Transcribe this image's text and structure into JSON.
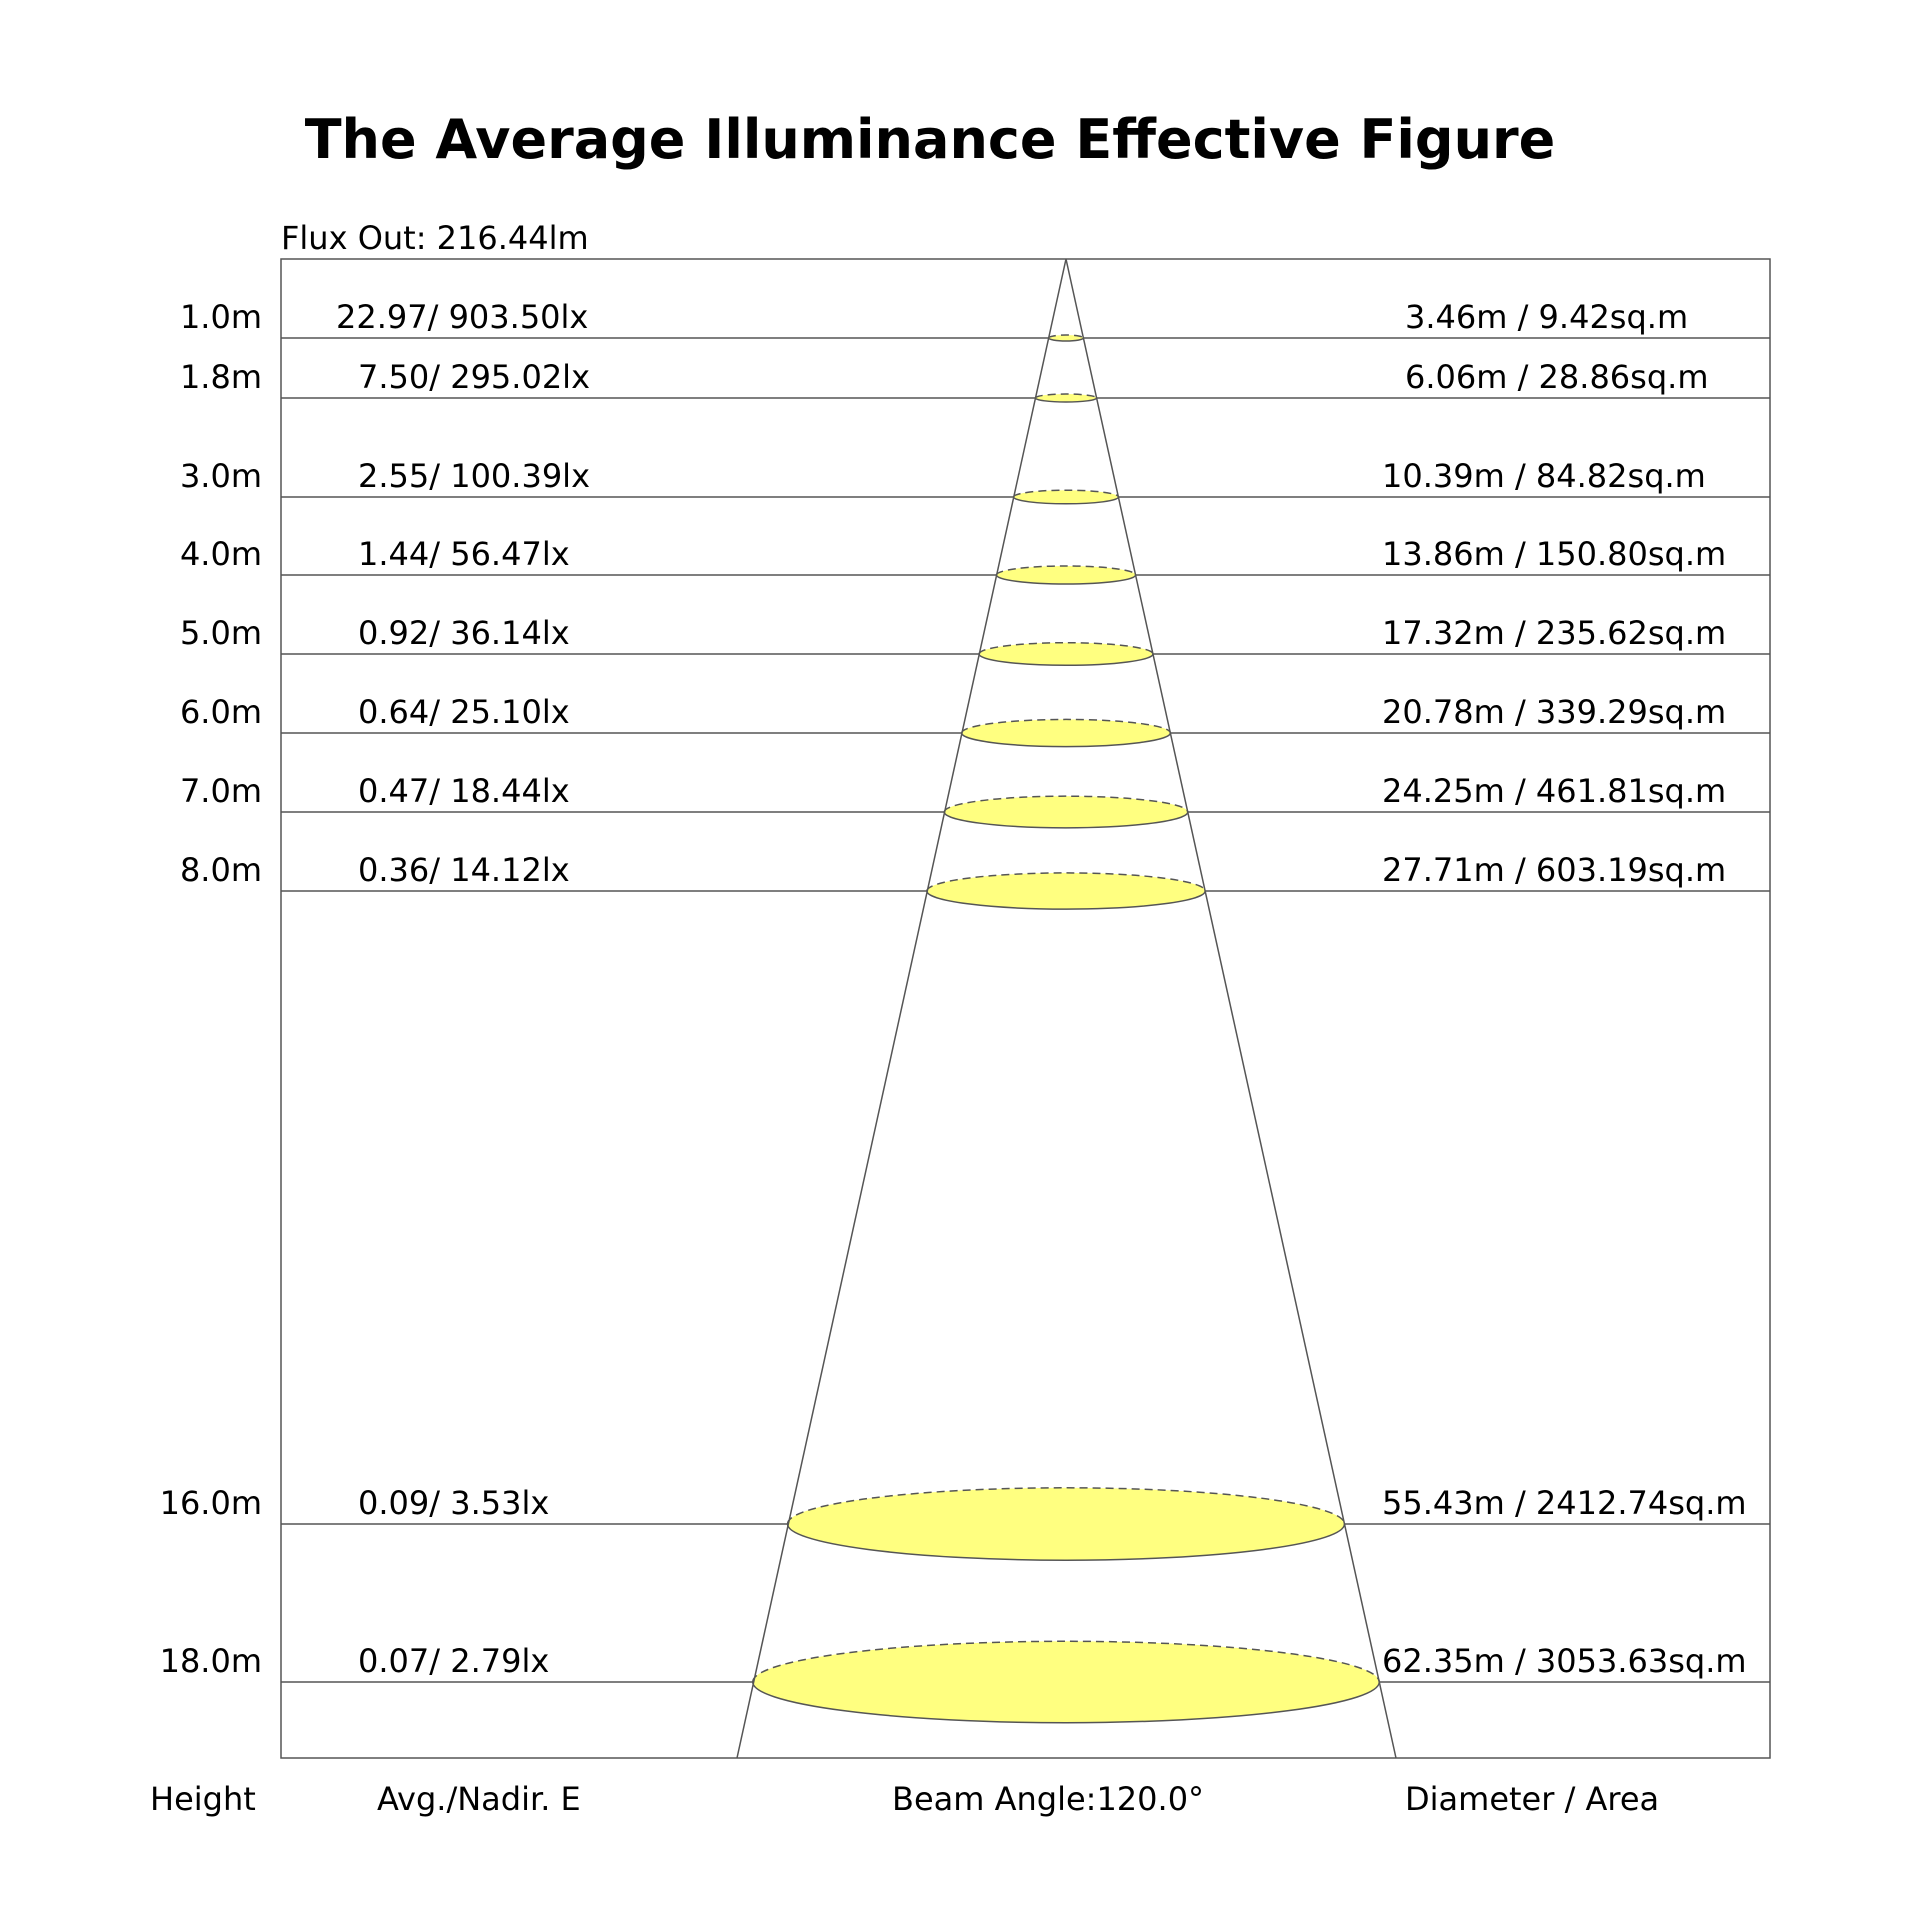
{
  "title": "The Average Illuminance Effective Figure",
  "flux_label": "Flux Out: 216.44lm",
  "footer": {
    "height": "Height",
    "illuminance": "Avg./Nadir. E",
    "beam_angle": "Beam Angle:120.0°",
    "diameter_area": "Diameter / Area"
  },
  "colors": {
    "spot_fill": "#ffff80",
    "line": "#555555"
  },
  "rows": [
    {
      "height": "1.0m",
      "height_m": 1.0,
      "illuminance": "22.97/ 903.50lx",
      "diameter_area": "3.46m / 9.42sq.m"
    },
    {
      "height": "1.8m",
      "height_m": 1.8,
      "illuminance": "7.50/ 295.02lx",
      "diameter_area": "6.06m / 28.86sq.m"
    },
    {
      "height": "3.0m",
      "height_m": 3.0,
      "illuminance": "2.55/ 100.39lx",
      "diameter_area": "10.39m / 84.82sq.m"
    },
    {
      "height": "4.0m",
      "height_m": 4.0,
      "illuminance": "1.44/ 56.47lx",
      "diameter_area": "13.86m / 150.80sq.m"
    },
    {
      "height": "5.0m",
      "height_m": 5.0,
      "illuminance": "0.92/ 36.14lx",
      "diameter_area": "17.32m / 235.62sq.m"
    },
    {
      "height": "6.0m",
      "height_m": 6.0,
      "illuminance": "0.64/ 25.10lx",
      "diameter_area": "20.78m / 339.29sq.m"
    },
    {
      "height": "7.0m",
      "height_m": 7.0,
      "illuminance": "0.47/ 18.44lx",
      "diameter_area": "24.25m / 461.81sq.m"
    },
    {
      "height": "8.0m",
      "height_m": 8.0,
      "illuminance": "0.36/ 14.12lx",
      "diameter_area": "27.71m / 603.19sq.m"
    },
    {
      "height": "16.0m",
      "height_m": 16.0,
      "illuminance": "0.09/ 3.53lx",
      "diameter_area": "55.43m / 2412.74sq.m"
    },
    {
      "height": "18.0m",
      "height_m": 18.0,
      "illuminance": "0.07/ 2.79lx",
      "diameter_area": "62.35m / 3053.63sq.m"
    }
  ]
}
